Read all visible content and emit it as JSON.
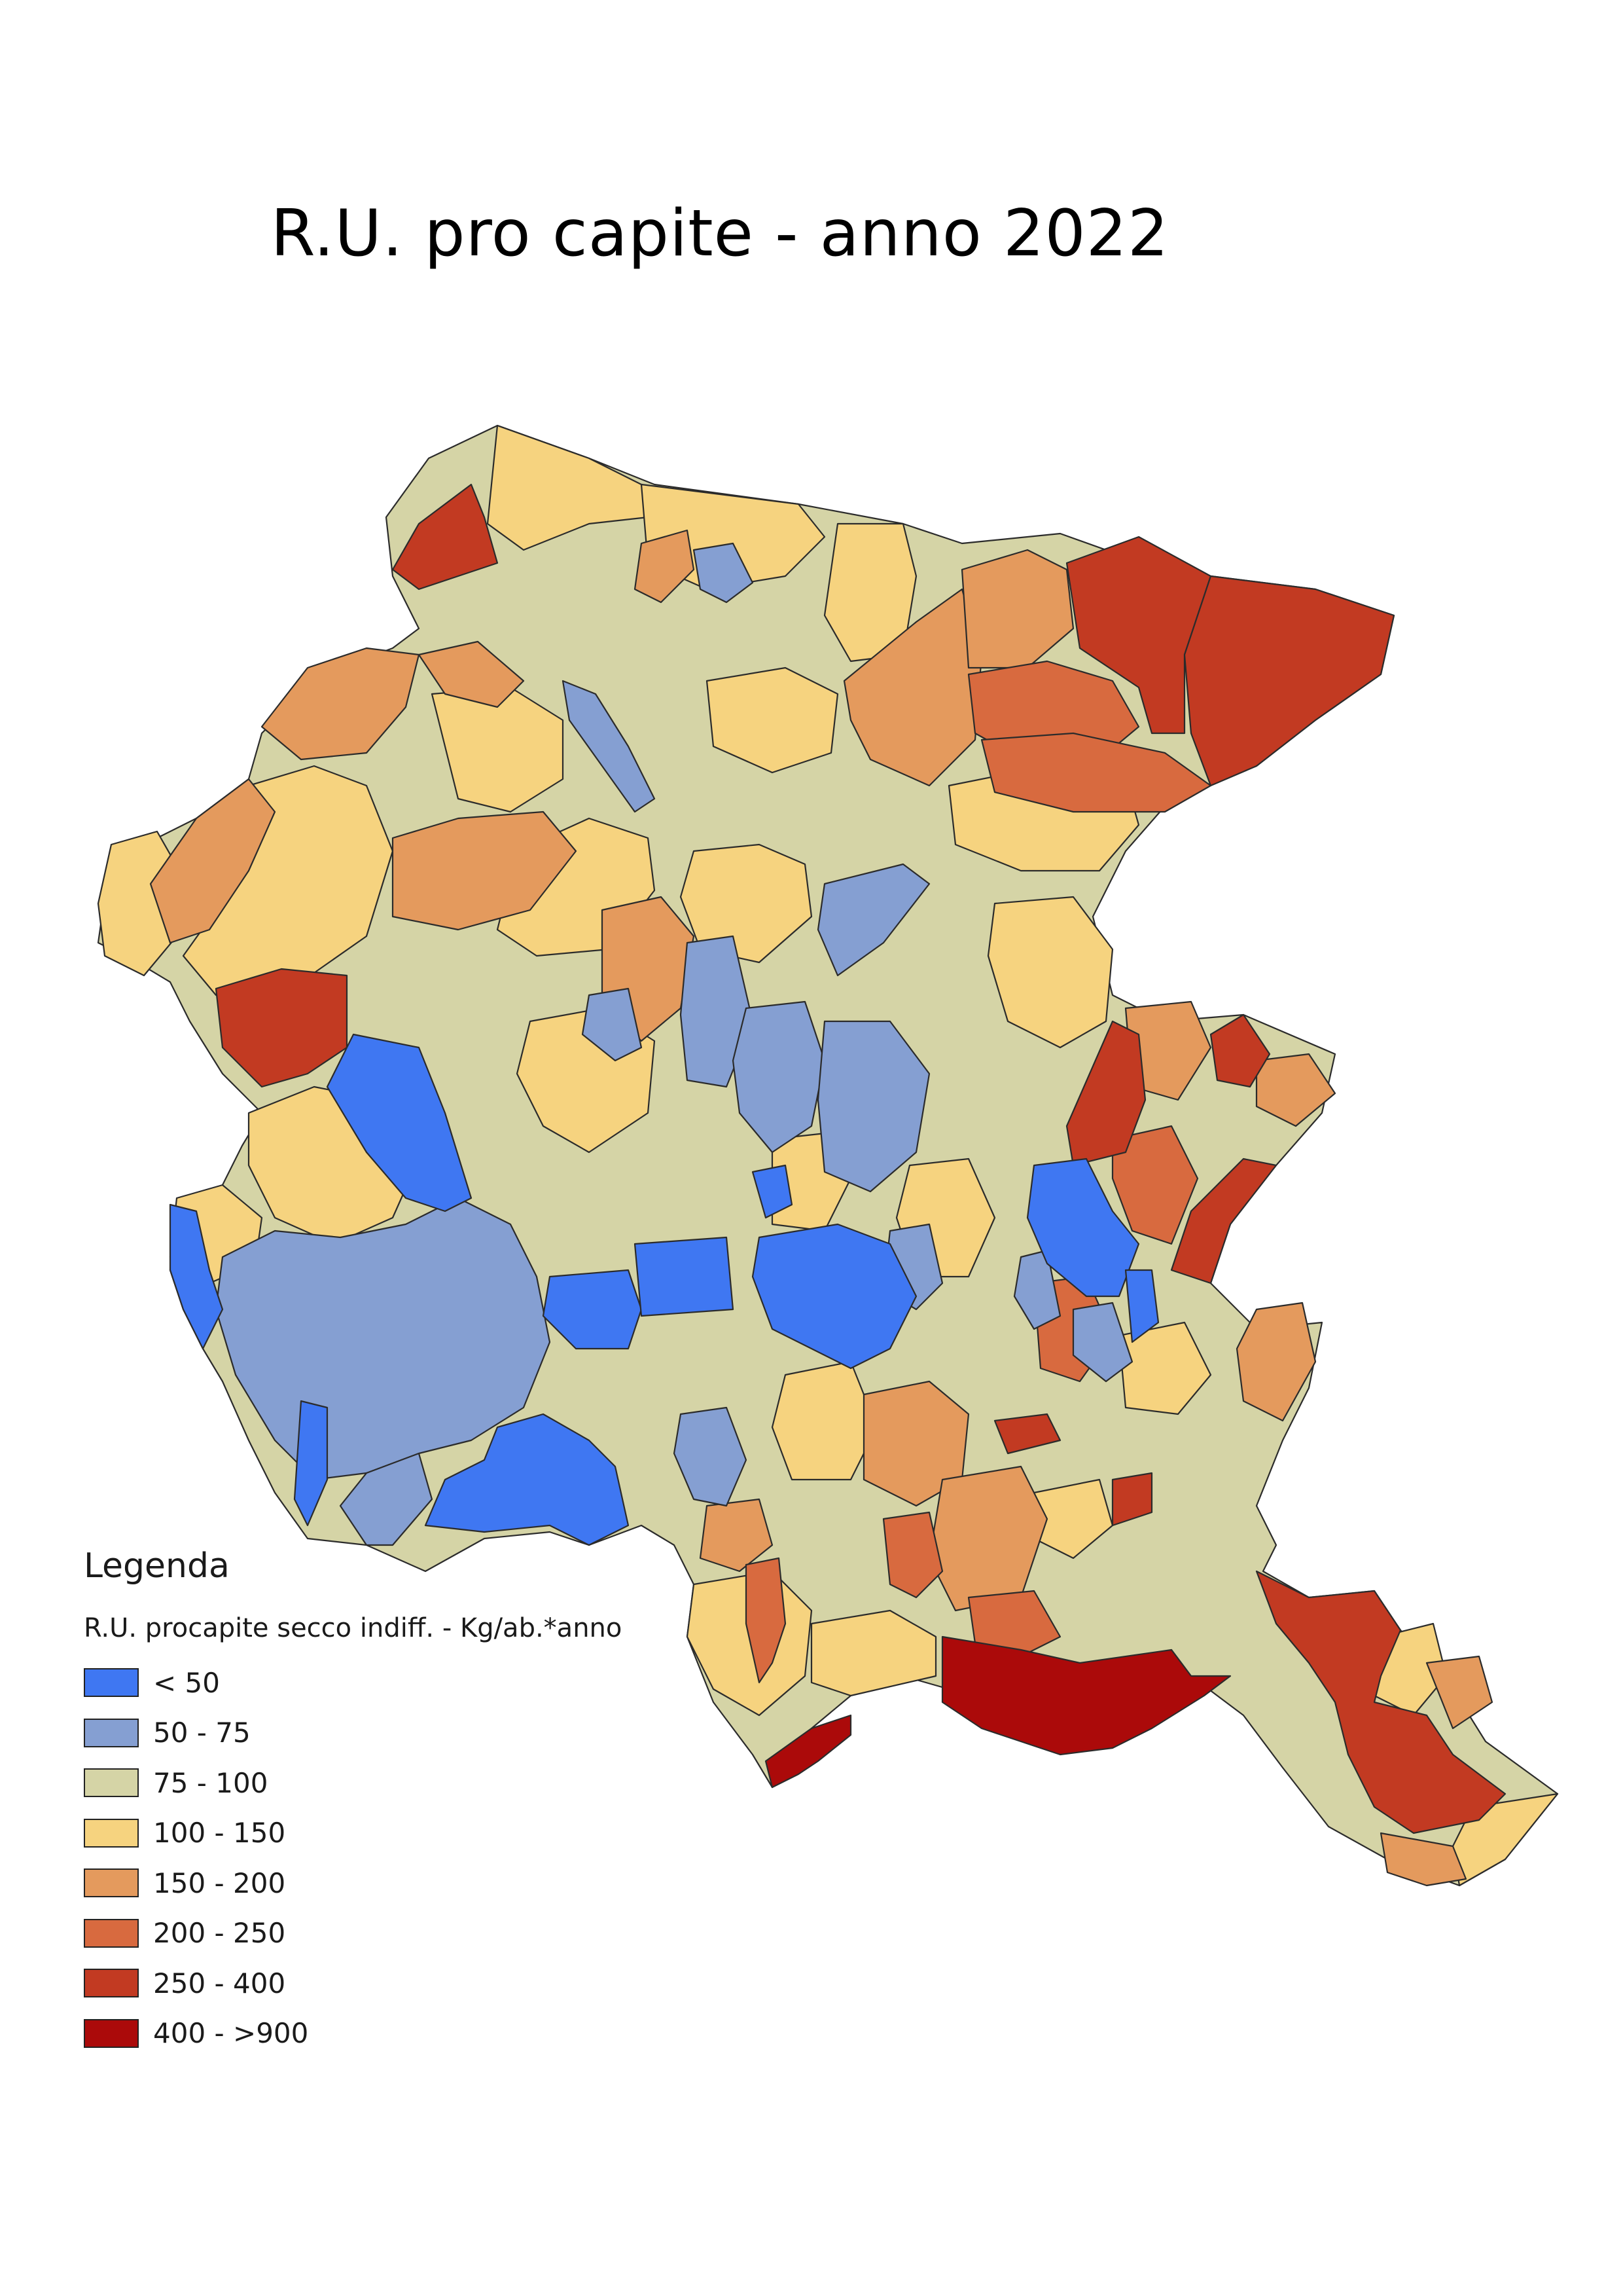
{
  "map": {
    "title": "R.U. pro capite - anno 2022"
  },
  "legend": {
    "title": "Legenda",
    "subtitle": "R.U. procapite secco indiff. - Kg/ab.*anno",
    "classes": [
      {
        "label": "< 50",
        "color": "#3f77f2"
      },
      {
        "label": "50 - 75",
        "color": "#859fd2"
      },
      {
        "label": "75 - 100",
        "color": "#d5d4a6"
      },
      {
        "label": "100 - 150",
        "color": "#f6d37f"
      },
      {
        "label": "150 - 200",
        "color": "#e49a5d"
      },
      {
        "label": "200 - 250",
        "color": "#d86a3f"
      },
      {
        "label": "250 - 400",
        "color": "#c23a22"
      },
      {
        "label": "400 - >900",
        "color": "#ab0a0a"
      }
    ]
  }
}
